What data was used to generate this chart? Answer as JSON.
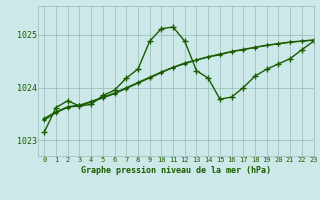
{
  "title": "Graphe pression niveau de la mer (hPa)",
  "background_color": "#cce8e8",
  "grid_color": "#99bbbb",
  "line_color": "#1a5c00",
  "xlim": [
    -0.5,
    23
  ],
  "ylim": [
    1022.7,
    1025.55
  ],
  "yticks": [
    1023,
    1024,
    1025
  ],
  "xticks": [
    0,
    1,
    2,
    3,
    4,
    5,
    6,
    7,
    8,
    9,
    10,
    11,
    12,
    13,
    14,
    15,
    16,
    17,
    18,
    19,
    20,
    21,
    22,
    23
  ],
  "main_series": [
    1023.15,
    1023.62,
    1023.75,
    1023.65,
    1023.68,
    1023.85,
    1023.95,
    1024.18,
    1024.35,
    1024.88,
    1025.12,
    1025.15,
    1024.88,
    1024.32,
    1024.18,
    1023.78,
    1023.82,
    1024.0,
    1024.22,
    1024.35,
    1024.45,
    1024.55,
    1024.72,
    1024.88
  ],
  "trend1": [
    1023.38,
    1023.52,
    1023.62,
    1023.65,
    1023.72,
    1023.8,
    1023.88,
    1023.98,
    1024.08,
    1024.18,
    1024.28,
    1024.38,
    1024.45,
    1024.52,
    1024.58,
    1024.62,
    1024.68,
    1024.72,
    1024.76,
    1024.8,
    1024.83,
    1024.86,
    1024.88,
    1024.9
  ],
  "trend2": [
    1023.4,
    1023.53,
    1023.63,
    1023.66,
    1023.73,
    1023.81,
    1023.89,
    1023.99,
    1024.09,
    1024.19,
    1024.29,
    1024.38,
    1024.46,
    1024.52,
    1024.58,
    1024.63,
    1024.68,
    1024.72,
    1024.76,
    1024.8,
    1024.83,
    1024.86,
    1024.88,
    1024.9
  ],
  "trend3": [
    1023.42,
    1023.54,
    1023.64,
    1023.67,
    1023.74,
    1023.82,
    1023.9,
    1024.0,
    1024.1,
    1024.2,
    1024.3,
    1024.39,
    1024.47,
    1024.53,
    1024.59,
    1024.64,
    1024.69,
    1024.73,
    1024.77,
    1024.81,
    1024.84,
    1024.87,
    1024.89,
    1024.91
  ]
}
